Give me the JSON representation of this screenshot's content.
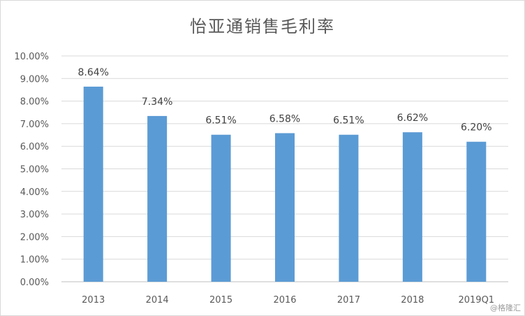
{
  "chart_data": {
    "type": "bar",
    "title": "怡亚通销售毛利率",
    "categories": [
      "2013",
      "2014",
      "2015",
      "2016",
      "2017",
      "2018",
      "2019Q1"
    ],
    "values": [
      8.64,
      7.34,
      6.51,
      6.58,
      6.51,
      6.62,
      6.2
    ],
    "data_labels": [
      "8.64%",
      "7.34%",
      "6.51%",
      "6.58%",
      "6.51%",
      "6.62%",
      "6.20%"
    ],
    "y_ticks": [
      "0.00%",
      "1.00%",
      "2.00%",
      "3.00%",
      "4.00%",
      "5.00%",
      "6.00%",
      "7.00%",
      "8.00%",
      "9.00%",
      "10.00%"
    ],
    "ylim": [
      0,
      10
    ],
    "xlabel": "",
    "ylabel": "",
    "grid": true,
    "bar_color": "#5b9bd5"
  },
  "watermark": "@格隆汇"
}
